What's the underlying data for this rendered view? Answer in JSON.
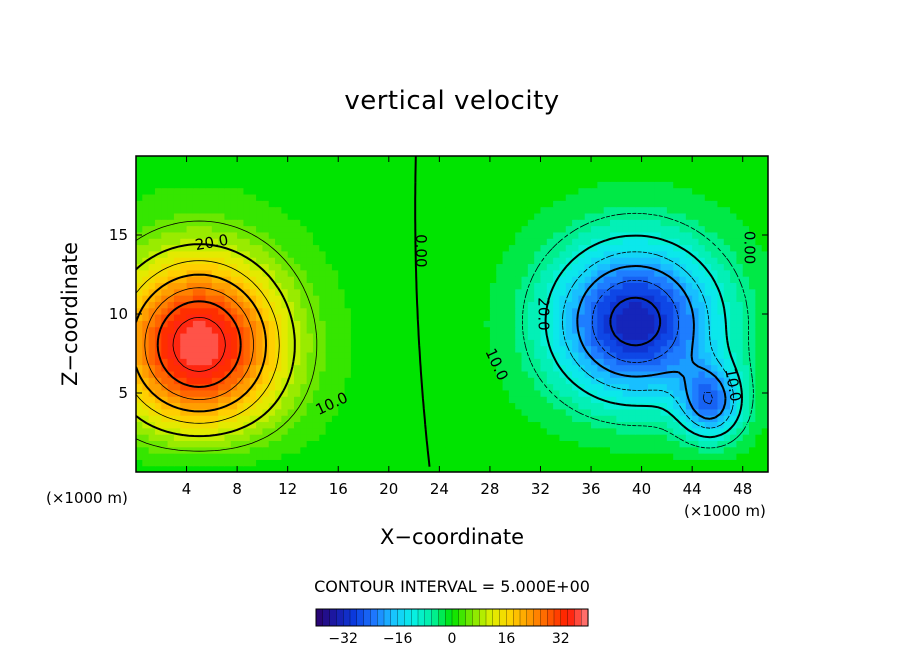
{
  "chart_data": {
    "type": "contour",
    "title": "vertical velocity",
    "xlabel": "X−coordinate",
    "ylabel": "Z−coordinate",
    "x_unit": "(×1000 m)",
    "xlim": [
      0,
      50
    ],
    "ylim": [
      0,
      20
    ],
    "x_ticks": [
      4,
      8,
      12,
      16,
      20,
      24,
      28,
      32,
      36,
      40,
      44,
      48
    ],
    "y_ticks": [
      5,
      10,
      15
    ],
    "contour_interval_label": "CONTOUR INTERVAL = 5.000E+00",
    "contour_interval": 5,
    "contour_labels": [
      {
        "text": "20.0",
        "x": 6,
        "z": 14.5,
        "rotate": -10
      },
      {
        "text": "10.0",
        "x": 15.5,
        "z": 4.3,
        "rotate": -25
      },
      {
        "text": "0.00",
        "x": 22.5,
        "z": 14.0,
        "rotate": 90
      },
      {
        "text": "20.0",
        "x": 32.2,
        "z": 10.0,
        "rotate": 90
      },
      {
        "text": "10.0",
        "x": 28.5,
        "z": 6.8,
        "rotate": 65
      },
      {
        "text": "10.0",
        "x": 47.2,
        "z": 5.5,
        "rotate": 80
      },
      {
        "text": "0.00",
        "x": 48.5,
        "z": 14.2,
        "rotate": 90
      }
    ],
    "colorbar": {
      "min": -40,
      "max": 40,
      "tick_values": [
        -32,
        -16,
        0,
        16,
        32
      ],
      "tick_labels": [
        "−32",
        "−16",
        "0",
        "16",
        "32"
      ]
    },
    "colormap": [
      "#2b006b",
      "#1a1aa8",
      "#0a3ce0",
      "#1e78ff",
      "#18c4ff",
      "#08f0e6",
      "#00f0a0",
      "#00e400",
      "#7ae800",
      "#dcf000",
      "#ffd200",
      "#ff9a00",
      "#ff5a00",
      "#ff1a00",
      "#ff8080"
    ],
    "field": {
      "background": 0,
      "updraft": {
        "x": 5.0,
        "z": 8.0,
        "peak": 39,
        "sx": 6.5,
        "sz": 5.5
      },
      "downdraft": {
        "x": 39.5,
        "z": 9.5,
        "peak": -33,
        "sx": 6.5,
        "sz": 5.0
      },
      "downdraft_secondary": {
        "x": 45.5,
        "z": 4.2,
        "peak": -22,
        "sx": 2.5,
        "sz": 2.5
      }
    }
  }
}
